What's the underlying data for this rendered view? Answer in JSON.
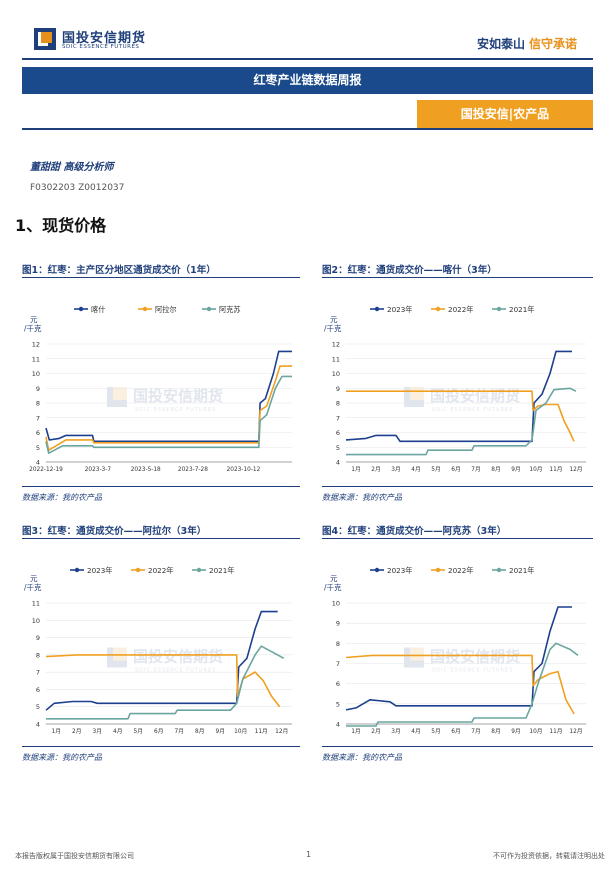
{
  "header": {
    "logo_cn": "国投安信期货",
    "logo_en": "SDIC ESSENCE FUTURES",
    "slogan_a": "安如泰山",
    "slogan_b": "信守承诺"
  },
  "report_title": "红枣产业链数据周报",
  "category_tag": "国投安信|农产品",
  "author": "董甜甜  高级分析师",
  "certs": "F0302203  Z0012037",
  "section_title": "1、现货价格",
  "watermark": {
    "cn": "国投安信期货",
    "en": "SDIC ESSENCE FUTURES"
  },
  "footer": {
    "left": "本报告版权属于国投安信期货有限公司",
    "page": "1",
    "right": "不可作为投资依据，转载请注明出处"
  },
  "colors": {
    "navy": "#1f3f7a",
    "orange": "#f0a020",
    "c_blue": "#1c3f8f",
    "c_orange": "#f0a020",
    "c_teal": "#6aa5a0"
  },
  "chart_data": [
    {
      "id": "fig1",
      "title": "图1：红枣：主产区分地区通货成交价（1年）",
      "type": "line",
      "ylabel": "元\n/千克",
      "ylim": [
        4,
        12
      ],
      "yticks": [
        4,
        5,
        6,
        7,
        8,
        9,
        10,
        11,
        12
      ],
      "xlim": [
        0,
        370
      ],
      "xticks": [
        {
          "x": 0,
          "label": "2022-12-19"
        },
        {
          "x": 78,
          "label": "2023-3-7"
        },
        {
          "x": 150,
          "label": "2023-5-18"
        },
        {
          "x": 221,
          "label": "2023-7-28"
        },
        {
          "x": 297,
          "label": "2023-10-12"
        }
      ],
      "source": "数据来源：我的农产品",
      "series": [
        {
          "name": "喀什",
          "color": "#1c3f8f",
          "points": [
            [
              0,
              6.3
            ],
            [
              5,
              5.5
            ],
            [
              20,
              5.6
            ],
            [
              30,
              5.8
            ],
            [
              70,
              5.8
            ],
            [
              72,
              5.4
            ],
            [
              320,
              5.4
            ],
            [
              322,
              8.0
            ],
            [
              330,
              8.3
            ],
            [
              335,
              9.0
            ],
            [
              342,
              10.0
            ],
            [
              350,
              11.5
            ],
            [
              370,
              11.5
            ]
          ]
        },
        {
          "name": "阿拉尔",
          "color": "#f0a020",
          "points": [
            [
              0,
              5.7
            ],
            [
              4,
              4.8
            ],
            [
              30,
              5.5
            ],
            [
              70,
              5.5
            ],
            [
              72,
              5.3
            ],
            [
              320,
              5.3
            ],
            [
              322,
              7.5
            ],
            [
              332,
              7.8
            ],
            [
              345,
              9.5
            ],
            [
              352,
              10.5
            ],
            [
              370,
              10.5
            ]
          ]
        },
        {
          "name": "阿克苏",
          "color": "#6aa5a0",
          "points": [
            [
              0,
              5.4
            ],
            [
              4,
              4.6
            ],
            [
              25,
              5.1
            ],
            [
              70,
              5.1
            ],
            [
              72,
              5.0
            ],
            [
              320,
              5.0
            ],
            [
              322,
              6.8
            ],
            [
              332,
              7.2
            ],
            [
              345,
              9.0
            ],
            [
              355,
              9.8
            ],
            [
              370,
              9.8
            ]
          ]
        }
      ]
    },
    {
      "id": "fig2",
      "title": "图2：红枣：通货成交价——喀什（3年）",
      "type": "line",
      "ylabel": "元\n/千克",
      "ylim": [
        4,
        12
      ],
      "yticks": [
        4,
        5,
        6,
        7,
        8,
        9,
        10,
        11,
        12
      ],
      "xlim": [
        0,
        12
      ],
      "xticks": [
        {
          "x": 0.5,
          "label": "1月"
        },
        {
          "x": 1.5,
          "label": "2月"
        },
        {
          "x": 2.5,
          "label": "3月"
        },
        {
          "x": 3.5,
          "label": "4月"
        },
        {
          "x": 4.5,
          "label": "5月"
        },
        {
          "x": 5.5,
          "label": "6月"
        },
        {
          "x": 6.5,
          "label": "7月"
        },
        {
          "x": 7.5,
          "label": "8月"
        },
        {
          "x": 8.5,
          "label": "9月"
        },
        {
          "x": 9.5,
          "label": "10月"
        },
        {
          "x": 10.5,
          "label": "11月"
        },
        {
          "x": 11.5,
          "label": "12月"
        }
      ],
      "source": "数据来源：我的农产品",
      "series": [
        {
          "name": "2023年",
          "color": "#1c3f8f",
          "points": [
            [
              0,
              5.5
            ],
            [
              1,
              5.6
            ],
            [
              1.5,
              5.8
            ],
            [
              2.5,
              5.8
            ],
            [
              2.7,
              5.4
            ],
            [
              9.3,
              5.4
            ],
            [
              9.4,
              8.0
            ],
            [
              9.8,
              8.6
            ],
            [
              10.2,
              10.0
            ],
            [
              10.5,
              11.5
            ],
            [
              11.3,
              11.5
            ]
          ]
        },
        {
          "name": "2022年",
          "color": "#f0a020",
          "points": [
            [
              0,
              8.8
            ],
            [
              9.3,
              8.8
            ],
            [
              9.35,
              7.5
            ],
            [
              9.6,
              7.8
            ],
            [
              10.0,
              7.9
            ],
            [
              10.6,
              7.9
            ],
            [
              10.9,
              6.8
            ],
            [
              11.2,
              6.0
            ],
            [
              11.4,
              5.4
            ]
          ]
        },
        {
          "name": "2021年",
          "color": "#6aa5a0",
          "points": [
            [
              0,
              4.5
            ],
            [
              4.0,
              4.5
            ],
            [
              4.1,
              4.8
            ],
            [
              6.3,
              4.8
            ],
            [
              6.4,
              5.1
            ],
            [
              9.0,
              5.1
            ],
            [
              9.3,
              5.5
            ],
            [
              9.5,
              7.5
            ],
            [
              10.0,
              8.0
            ],
            [
              10.4,
              8.9
            ],
            [
              11.2,
              9.0
            ],
            [
              11.5,
              8.8
            ]
          ]
        }
      ]
    },
    {
      "id": "fig3",
      "title": "图3：红枣：通货成交价——阿拉尔（3年）",
      "type": "line",
      "ylabel": "元\n/千克",
      "ylim": [
        4,
        11
      ],
      "yticks": [
        4,
        5,
        6,
        7,
        8,
        9,
        10,
        11
      ],
      "xlim": [
        0,
        12
      ],
      "xticks": [
        {
          "x": 0.5,
          "label": "1月"
        },
        {
          "x": 1.5,
          "label": "2月"
        },
        {
          "x": 2.5,
          "label": "3月"
        },
        {
          "x": 3.5,
          "label": "4月"
        },
        {
          "x": 4.5,
          "label": "5月"
        },
        {
          "x": 5.5,
          "label": "6月"
        },
        {
          "x": 6.5,
          "label": "7月"
        },
        {
          "x": 7.5,
          "label": "8月"
        },
        {
          "x": 8.5,
          "label": "9月"
        },
        {
          "x": 9.5,
          "label": "10月"
        },
        {
          "x": 10.5,
          "label": "11月"
        },
        {
          "x": 11.5,
          "label": "12月"
        }
      ],
      "source": "数据来源：我的农产品",
      "series": [
        {
          "name": "2023年",
          "color": "#1c3f8f",
          "points": [
            [
              0,
              4.8
            ],
            [
              0.4,
              5.2
            ],
            [
              1.3,
              5.3
            ],
            [
              2.2,
              5.3
            ],
            [
              2.5,
              5.2
            ],
            [
              9.3,
              5.2
            ],
            [
              9.4,
              7.3
            ],
            [
              9.8,
              7.8
            ],
            [
              10.2,
              9.5
            ],
            [
              10.5,
              10.5
            ],
            [
              11.3,
              10.5
            ]
          ]
        },
        {
          "name": "2022年",
          "color": "#f0a020",
          "points": [
            [
              0,
              7.9
            ],
            [
              1.5,
              8.0
            ],
            [
              9.3,
              8.0
            ],
            [
              9.35,
              5.6
            ],
            [
              9.6,
              6.6
            ],
            [
              10.2,
              7.0
            ],
            [
              10.6,
              6.5
            ],
            [
              11.0,
              5.6
            ],
            [
              11.4,
              5.0
            ]
          ]
        },
        {
          "name": "2021年",
          "color": "#6aa5a0",
          "points": [
            [
              0,
              4.3
            ],
            [
              4.0,
              4.3
            ],
            [
              4.1,
              4.6
            ],
            [
              6.3,
              4.6
            ],
            [
              6.4,
              4.8
            ],
            [
              9.0,
              4.8
            ],
            [
              9.3,
              5.2
            ],
            [
              9.6,
              6.6
            ],
            [
              10.2,
              8.0
            ],
            [
              10.5,
              8.5
            ],
            [
              11.3,
              8.0
            ],
            [
              11.6,
              7.8
            ]
          ]
        }
      ]
    },
    {
      "id": "fig4",
      "title": "图4：红枣：通货成交价——阿克苏（3年）",
      "type": "line",
      "ylabel": "元\n/千克",
      "ylim": [
        4,
        10
      ],
      "yticks": [
        4,
        5,
        6,
        7,
        8,
        9,
        10
      ],
      "xlim": [
        0,
        12
      ],
      "xticks": [
        {
          "x": 0.5,
          "label": "1月"
        },
        {
          "x": 1.5,
          "label": "2月"
        },
        {
          "x": 2.5,
          "label": "3月"
        },
        {
          "x": 3.5,
          "label": "4月"
        },
        {
          "x": 4.5,
          "label": "5月"
        },
        {
          "x": 5.5,
          "label": "6月"
        },
        {
          "x": 6.5,
          "label": "7月"
        },
        {
          "x": 7.5,
          "label": "8月"
        },
        {
          "x": 8.5,
          "label": "9月"
        },
        {
          "x": 9.5,
          "label": "10月"
        },
        {
          "x": 10.5,
          "label": "11月"
        },
        {
          "x": 11.5,
          "label": "12月"
        }
      ],
      "source": "数据来源：我的农产品",
      "series": [
        {
          "name": "2023年",
          "color": "#1c3f8f",
          "points": [
            [
              0,
              4.7
            ],
            [
              0.5,
              4.8
            ],
            [
              1.2,
              5.2
            ],
            [
              2.2,
              5.1
            ],
            [
              2.5,
              4.9
            ],
            [
              9.3,
              4.9
            ],
            [
              9.4,
              6.6
            ],
            [
              9.8,
              7.0
            ],
            [
              10.2,
              8.6
            ],
            [
              10.6,
              9.8
            ],
            [
              11.3,
              9.8
            ]
          ]
        },
        {
          "name": "2022年",
          "color": "#f0a020",
          "points": [
            [
              0,
              7.3
            ],
            [
              1.3,
              7.4
            ],
            [
              9.3,
              7.4
            ],
            [
              9.35,
              5.9
            ],
            [
              9.6,
              6.2
            ],
            [
              10.2,
              6.5
            ],
            [
              10.6,
              6.6
            ],
            [
              11.0,
              5.2
            ],
            [
              11.4,
              4.5
            ]
          ]
        },
        {
          "name": "2021年",
          "color": "#6aa5a0",
          "points": [
            [
              0,
              3.9
            ],
            [
              1.5,
              3.9
            ],
            [
              1.6,
              4.1
            ],
            [
              6.3,
              4.1
            ],
            [
              6.4,
              4.3
            ],
            [
              9.0,
              4.3
            ],
            [
              9.3,
              5.0
            ],
            [
              9.6,
              6.0
            ],
            [
              10.2,
              7.7
            ],
            [
              10.5,
              8.0
            ],
            [
              11.2,
              7.7
            ],
            [
              11.6,
              7.4
            ]
          ]
        }
      ]
    }
  ]
}
